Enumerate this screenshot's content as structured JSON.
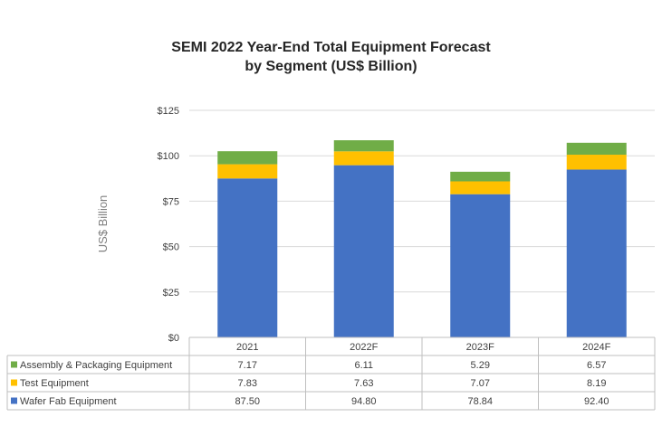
{
  "chart_data": {
    "type": "bar",
    "stacked": true,
    "title": "SEMI 2022 Year-End Total Equipment Forecast",
    "subtitle": "by Segment (US$ Billion)",
    "ylabel": "US$ Billion",
    "ylim": [
      0,
      125
    ],
    "yticks": [
      "$0",
      "$25",
      "$50",
      "$75",
      "$100",
      "$125"
    ],
    "ytick_values": [
      0,
      25,
      50,
      75,
      100,
      125
    ],
    "grid": true,
    "categories": [
      "2021",
      "2022F",
      "2023F",
      "2024F"
    ],
    "series": [
      {
        "name": "Wafer Fab Equipment",
        "color": "#4472C4",
        "values": [
          87.5,
          94.8,
          78.84,
          92.4
        ],
        "labels": [
          "87.50",
          "94.80",
          "78.84",
          "92.40"
        ]
      },
      {
        "name": "Test Equipment",
        "color": "#FFC000",
        "values": [
          7.83,
          7.63,
          7.07,
          8.19
        ],
        "labels": [
          "7.83",
          "7.63",
          "7.07",
          "8.19"
        ]
      },
      {
        "name": "Assembly & Packaging Equipment",
        "color": "#70AD47",
        "values": [
          7.17,
          6.11,
          5.29,
          6.57
        ],
        "labels": [
          "7.17",
          "6.11",
          "5.29",
          "6.57"
        ]
      }
    ],
    "legend": "data-table"
  }
}
